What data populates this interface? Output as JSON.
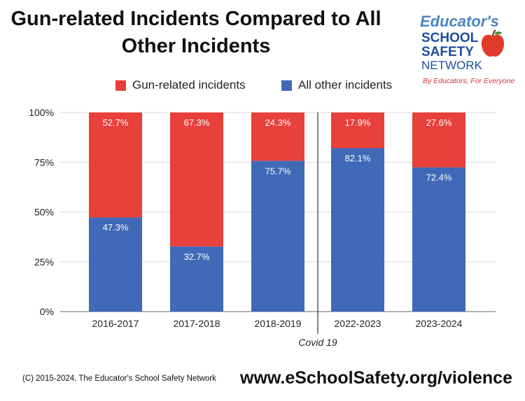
{
  "title_line1": "Gun-related Incidents Compared to All",
  "title_line2": "Other Incidents",
  "logo": {
    "line1": "Educator's",
    "line2": "SCHOOL",
    "line3": "SAFETY",
    "line4": "NETWORK",
    "tagline": "By Educators, For Everyone"
  },
  "colors": {
    "gun": "#e8403a",
    "other": "#4069b7",
    "grid": "#d7d7d7",
    "axis": "#666666"
  },
  "chart_data": {
    "type": "bar",
    "stacked": true,
    "categories": [
      "2016-2017",
      "2017-2018",
      "2018-2019",
      "2022-2023",
      "2023-2024"
    ],
    "series": [
      {
        "name": "Gun-related incidents",
        "values": [
          52.7,
          67.3,
          24.3,
          17.9,
          27.6
        ],
        "labels": [
          "52.7%",
          "67.3%",
          "24.3%",
          "17.9%",
          "27.6%"
        ]
      },
      {
        "name": "All other incidents",
        "values": [
          47.3,
          32.7,
          75.7,
          82.1,
          72.4
        ],
        "labels": [
          "47.3%",
          "32.7%",
          "75.7%",
          "82.1%",
          "72.4%"
        ]
      }
    ],
    "ylim": [
      0,
      100
    ],
    "yticks": [
      "0%",
      "25%",
      "50%",
      "75%",
      "100%"
    ],
    "grid": true,
    "legend_position": "top",
    "annotation": "Covid 19"
  },
  "footer_left": "(C) 2015-2024, The Educator's School Safety Network",
  "footer_right": "www.eSchoolSafety.org/violence"
}
